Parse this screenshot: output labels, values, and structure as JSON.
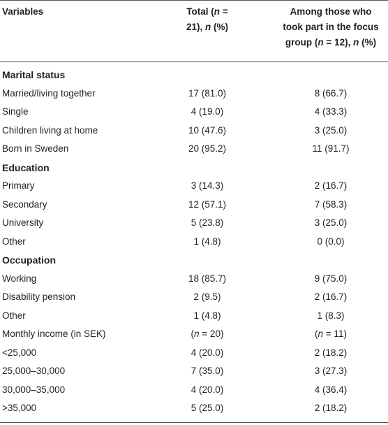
{
  "header": {
    "col1": "Variables",
    "col2_line1_pre": "Total (",
    "col2_n": "n",
    "col2_line1_post": " =",
    "col2_line2_pre": "21), ",
    "col2_n2": "n",
    "col2_line2_post": " (%)",
    "col3_line1": "Among those who",
    "col3_line2": "took part in the focus",
    "col3_line3_pre": "group (",
    "col3_n": "n",
    "col3_line3_mid": " = 12), ",
    "col3_n2": "n",
    "col3_line3_post": " (%)"
  },
  "rows": [
    {
      "label": "Marital status",
      "total": "",
      "focus": "",
      "section": true
    },
    {
      "label": "Married/living together",
      "total": "17 (81.0)",
      "focus": "8 (66.7)"
    },
    {
      "label": "Single",
      "total": "4 (19.0)",
      "focus": "4 (33.3)"
    },
    {
      "label": "Children living at home",
      "total": "10 (47.6)",
      "focus": "3 (25.0)"
    },
    {
      "label": "Born in Sweden",
      "total": "20 (95.2)",
      "focus": "11 (91.7)"
    },
    {
      "label": "Education",
      "total": "",
      "focus": "",
      "section": true
    },
    {
      "label": "Primary",
      "total": "3 (14.3)",
      "focus": "2 (16.7)"
    },
    {
      "label": "Secondary",
      "total": "12 (57.1)",
      "focus": "7 (58.3)"
    },
    {
      "label": "University",
      "total": "5 (23.8)",
      "focus": "3 (25.0)"
    },
    {
      "label": "Other",
      "total": "1 (4.8)",
      "focus": "0 (0.0)"
    },
    {
      "label": "Occupation",
      "total": "",
      "focus": "",
      "section": true
    },
    {
      "label": "Working",
      "total": "18 (85.7)",
      "focus": "9 (75.0)"
    },
    {
      "label": "Disability pension",
      "total": "2 (9.5)",
      "focus": "2 (16.7)"
    },
    {
      "label": "Other",
      "total": "1 (4.8)",
      "focus": "1 (8.3)"
    },
    {
      "label": "Monthly income (in SEK)",
      "total_pre": "(",
      "total_n": "n",
      "total_post": " = 20)",
      "focus_pre": "(",
      "focus_n": "n",
      "focus_post": " = 11)",
      "nrow": true
    },
    {
      "label": "<25,000",
      "total": "4 (20.0)",
      "focus": "2 (18.2)"
    },
    {
      "label": "25,000–30,000",
      "total": "7 (35.0)",
      "focus": "3 (27.3)"
    },
    {
      "label": "30,000–35,000",
      "total": "4 (20.0)",
      "focus": "4 (36.4)"
    },
    {
      "label": ">35,000",
      "total": "5 (25.0)",
      "focus": "2 (18.2)"
    }
  ]
}
